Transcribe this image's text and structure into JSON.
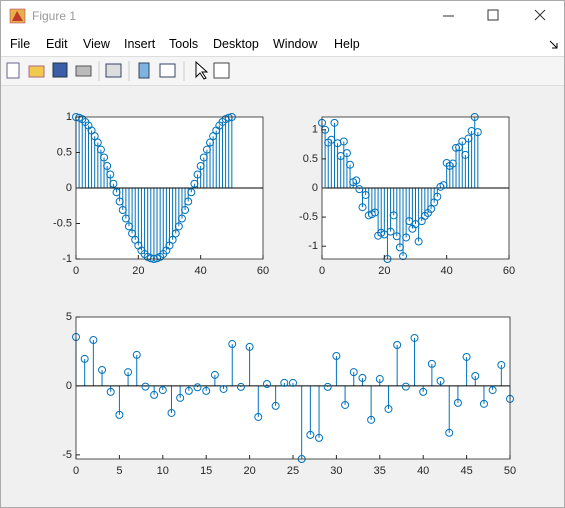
{
  "window": {
    "title": "Figure 1"
  },
  "menu": [
    "File",
    "Edit",
    "View",
    "Insert",
    "Tools",
    "Desktop",
    "Window",
    "Help"
  ],
  "chart_data": [
    {
      "type": "stem",
      "color": "#0072bd",
      "x": [
        0,
        1,
        2,
        3,
        4,
        5,
        6,
        7,
        8,
        9,
        10,
        11,
        12,
        13,
        14,
        15,
        16,
        17,
        18,
        19,
        20,
        21,
        22,
        23,
        24,
        25,
        26,
        27,
        28,
        29,
        30,
        31,
        32,
        33,
        34,
        35,
        36,
        37,
        38,
        39,
        40,
        41,
        42,
        43,
        44,
        45,
        46,
        47,
        48,
        49,
        50
      ],
      "values": [
        1,
        0.99,
        0.97,
        0.93,
        0.88,
        0.81,
        0.73,
        0.64,
        0.54,
        0.43,
        0.31,
        0.19,
        0.06,
        -0.06,
        -0.19,
        -0.31,
        -0.43,
        -0.54,
        -0.64,
        -0.73,
        -0.81,
        -0.88,
        -0.93,
        -0.97,
        -0.99,
        -1,
        -0.99,
        -0.97,
        -0.93,
        -0.88,
        -0.81,
        -0.73,
        -0.64,
        -0.54,
        -0.43,
        -0.31,
        -0.19,
        -0.06,
        0.06,
        0.19,
        0.31,
        0.43,
        0.54,
        0.64,
        0.73,
        0.81,
        0.88,
        0.93,
        0.97,
        0.99,
        1
      ],
      "xlim": [
        0,
        60
      ],
      "xticks": [
        0,
        20,
        40,
        60
      ],
      "ylim": [
        -1,
        1
      ],
      "yticks": [
        -1,
        -0.5,
        0,
        0.5,
        1
      ]
    },
    {
      "type": "stem",
      "color": "#0072bd",
      "x": [
        0,
        1,
        2,
        3,
        4,
        5,
        6,
        7,
        8,
        9,
        10,
        11,
        12,
        13,
        14,
        15,
        16,
        17,
        18,
        19,
        20,
        21,
        22,
        23,
        24,
        25,
        26,
        27,
        28,
        29,
        30,
        31,
        32,
        33,
        34,
        35,
        36,
        37,
        38,
        39,
        40,
        41,
        42,
        43,
        44,
        45,
        46,
        47,
        48,
        49,
        50
      ],
      "values": [
        1.12,
        1.0,
        0.78,
        0.83,
        1.12,
        0.77,
        0.55,
        0.8,
        0.6,
        0.4,
        0.1,
        0.13,
        -0.02,
        -0.33,
        -0.12,
        -0.47,
        -0.45,
        -0.42,
        -0.82,
        -0.77,
        -0.8,
        -1.22,
        -0.75,
        -0.47,
        -0.83,
        -1.02,
        -1.17,
        -0.85,
        -0.57,
        -0.7,
        -0.62,
        -0.92,
        -0.57,
        -0.48,
        -0.43,
        -0.36,
        -0.25,
        -0.15,
        0.02,
        0.05,
        0.43,
        0.38,
        0.42,
        0.69,
        0.7,
        0.8,
        0.57,
        0.85,
        0.98,
        1.22,
        0.96
      ],
      "xlim": [
        0,
        60
      ],
      "xticks": [
        0,
        20,
        40,
        60
      ],
      "ylim": [
        -1.22,
        1.22
      ],
      "yticks": [
        -1,
        -0.5,
        0,
        0.5,
        1
      ]
    },
    {
      "type": "stem",
      "color": "#0072bd",
      "x": [
        0,
        1,
        2,
        3,
        4,
        5,
        6,
        7,
        8,
        9,
        10,
        11,
        12,
        13,
        14,
        15,
        16,
        17,
        18,
        19,
        20,
        21,
        22,
        23,
        24,
        25,
        26,
        27,
        28,
        29,
        30,
        31,
        32,
        33,
        34,
        35,
        36,
        37,
        38,
        39,
        40,
        41,
        42,
        43,
        44,
        45,
        46,
        47,
        48,
        49,
        50
      ],
      "values": [
        3.55,
        1.96,
        3.33,
        1.16,
        -0.43,
        -2.1,
        1.0,
        2.25,
        -0.05,
        -0.65,
        -0.3,
        -1.96,
        -0.87,
        -0.36,
        -0.1,
        -0.36,
        0.8,
        -0.22,
        3.04,
        -0.07,
        2.83,
        -2.25,
        0.14,
        -1.45,
        0.22,
        0.22,
        -5.3,
        -3.55,
        -3.77,
        -0.07,
        2.17,
        -1.38,
        1.0,
        0.58,
        -2.46,
        0.5,
        -1.67,
        2.97,
        -0.05,
        3.48,
        -0.43,
        1.6,
        0.36,
        -3.4,
        -1.23,
        2.1,
        0.72,
        -1.3,
        -0.3,
        1.52,
        -0.94
      ],
      "xlim": [
        0,
        50
      ],
      "xticks": [
        0,
        5,
        10,
        15,
        20,
        25,
        30,
        35,
        40,
        45,
        50
      ],
      "ylim": [
        -5.3,
        5
      ],
      "yticks": [
        -5,
        0,
        5
      ]
    }
  ]
}
